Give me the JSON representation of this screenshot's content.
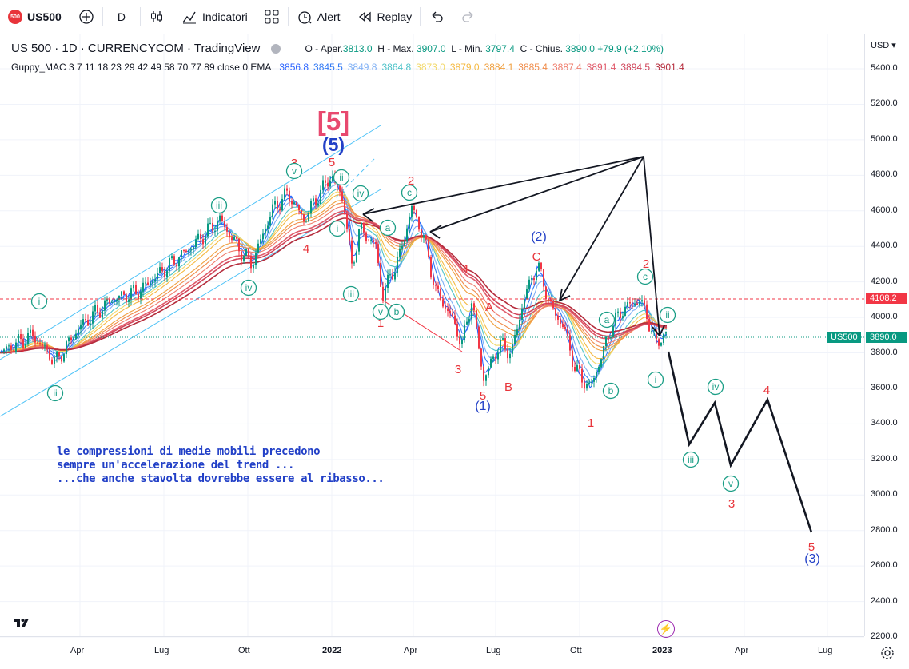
{
  "toolbar": {
    "symbol": "US500",
    "symbol_badge": "500",
    "interval": "D",
    "indicators_label": "Indicatori",
    "alert_label": "Alert",
    "replay_label": "Replay"
  },
  "legend": {
    "title": "US 500 · 1D · CURRENCYCOM · TradingView",
    "open_label": "O - Aper.",
    "open": "3813.0",
    "high_label": "H - Max.",
    "high": "3907.0",
    "low_label": "L - Min.",
    "low": "3797.4",
    "close_label": "C - Chius.",
    "close": "3890.0",
    "change": "+79.9 (+2.10%)",
    "indicator": "Guppy_MAC 3 7 11 18 23 29 42 49 58 70 77 89 close 0 EMA",
    "ema_values": [
      "3856.8",
      "3845.5",
      "3849.8",
      "3864.8",
      "3873.0",
      "3879.0",
      "3884.1",
      "3885.4",
      "3887.4",
      "3891.4",
      "3894.5",
      "3901.4"
    ],
    "ema_colors": [
      "#2962ff",
      "#3179f5",
      "#7fb0f5",
      "#4ec3c9",
      "#f2d86a",
      "#f5b942",
      "#f0a040",
      "#f08c4a",
      "#ef7c6c",
      "#e05a6a",
      "#d0455a",
      "#b52c3c"
    ]
  },
  "price_axis": {
    "currency": "USD",
    "ticks": [
      "5400.0",
      "5200.0",
      "5000.0",
      "4800.0",
      "4600.0",
      "4400.0",
      "4200.0",
      "4000.0",
      "3800.0",
      "3600.0",
      "3400.0",
      "3200.0",
      "3000.0",
      "2800.0",
      "2600.0",
      "2400.0",
      "2200.0"
    ],
    "current_symbol": "US500",
    "current_price": "3890.0",
    "line_price": "4108.2"
  },
  "time_axis": {
    "ticks": [
      "Apr",
      "Lug",
      "Ott",
      "2022",
      "Apr",
      "Lug",
      "Ott",
      "2023",
      "Apr",
      "Lug"
    ]
  },
  "annotation": {
    "line1": "le compressioni di medie mobili precedono",
    "line2": "sempre un'accelerazione del trend ...",
    "line3": "...che anche stavolta dovrebbe essere al ribasso..."
  },
  "wave_labels": {
    "big5": "[5]",
    "wave5_blue": "(5)",
    "wave1_blue": "(1)",
    "wave2_blue": "(2)",
    "wave3_blue": "(3)",
    "r3": "3",
    "r5": "5",
    "r4": "4",
    "r1": "1",
    "r2": "2",
    "r3b": "3",
    "r5b": "5",
    "rB": "B",
    "rA": "A",
    "rC": "C",
    "r4b": "4",
    "r1b": "1",
    "r2b": "2",
    "r4c": "4",
    "r3c": "3",
    "r5c": "5",
    "g_i": "i",
    "g_ii": "ii",
    "g_iii": "iii",
    "g_iv": "iv",
    "g_v": "v",
    "g_a": "a",
    "g_b": "b",
    "g_c": "c"
  },
  "colors": {
    "bull": "#089981",
    "bear": "#f23645",
    "blue": "#2240c7",
    "red": "#e8343a",
    "teal": "#1b9e86",
    "channel": "#4fc3f7"
  }
}
